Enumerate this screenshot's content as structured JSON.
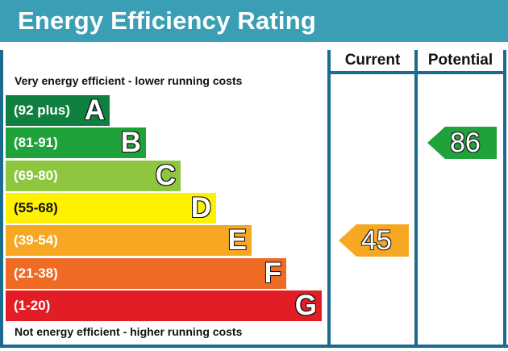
{
  "title": "Energy Efficiency Rating",
  "columns": {
    "current": "Current",
    "potential": "Potential"
  },
  "top_note": "Very energy efficient - lower running costs",
  "bottom_note": "Not energy efficient - higher running costs",
  "chart_data": {
    "type": "bar",
    "title": "Energy Efficiency Rating",
    "bands": [
      {
        "letter": "A",
        "range": "(92 plus)",
        "color": "#0f8040"
      },
      {
        "letter": "B",
        "range": "(81-91)",
        "color": "#1fa23a"
      },
      {
        "letter": "C",
        "range": "(69-80)",
        "color": "#8ec63f"
      },
      {
        "letter": "D",
        "range": "(55-68)",
        "color": "#fff200"
      },
      {
        "letter": "E",
        "range": "(39-54)",
        "color": "#f7a823"
      },
      {
        "letter": "F",
        "range": "(21-38)",
        "color": "#ef6a23"
      },
      {
        "letter": "G",
        "range": "(1-20)",
        "color": "#e31d25"
      }
    ],
    "current": {
      "value": "45",
      "band": "E",
      "color": "#f7a823"
    },
    "potential": {
      "value": "86",
      "band": "B",
      "color": "#1fa23a"
    }
  }
}
